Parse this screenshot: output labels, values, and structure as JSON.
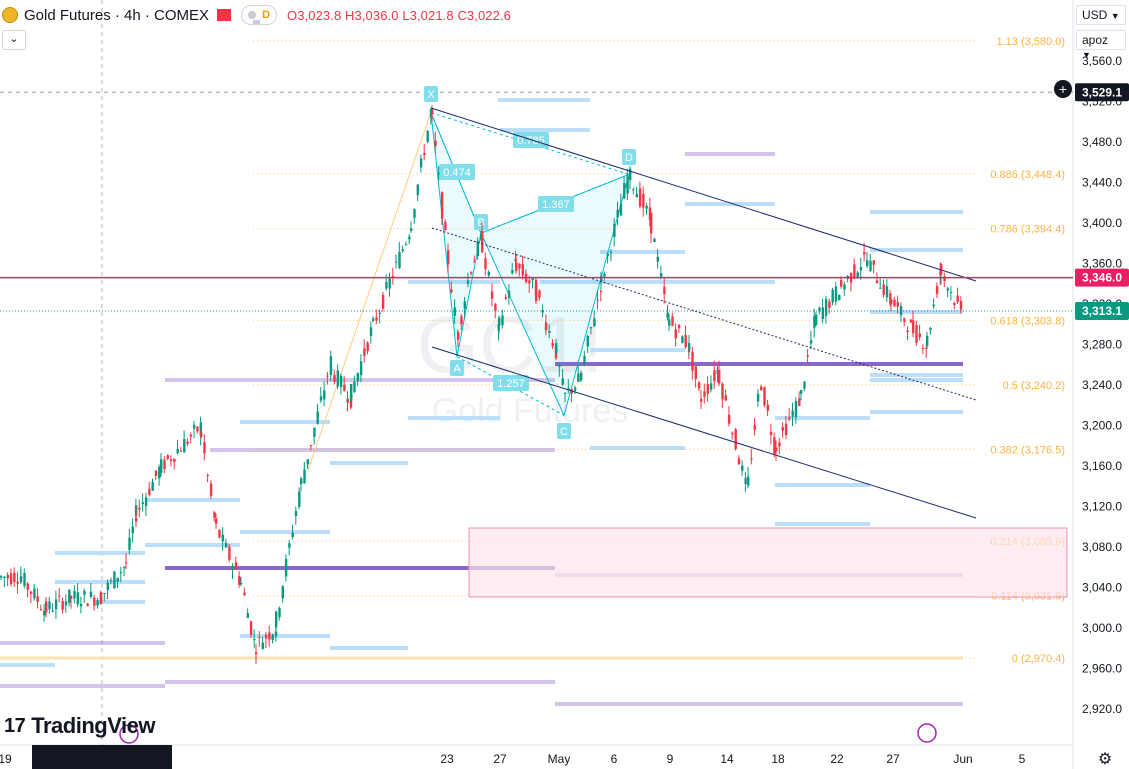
{
  "header": {
    "title": "Gold Futures · 4h · COMEX",
    "pill_label": "D",
    "ohlc": {
      "o": "O3,023.8",
      "h": "H3,036.0",
      "l": "L3,021.8",
      "c": "C3,022.6"
    },
    "collapse_icon": "chevron-down-icon"
  },
  "right_toolbar": {
    "currency": "USD",
    "currency_icon": "chevron-down-icon",
    "scale": "apoz",
    "scale_icon": "chevron-down-icon"
  },
  "crosshair_price": "3,529.1",
  "brand": "TradingView",
  "watermark": {
    "symbol": "GC1!",
    "name": "Gold Futures"
  },
  "colors": {
    "up": "#089981",
    "down": "#f23645",
    "fib": "#ff9800",
    "channel": "#1e2a6e",
    "pattern": "#00bcd4",
    "hline": "#e91e63",
    "box": "#fce4ec",
    "purple": "#7e57c2",
    "bluebar": "#bbdefb"
  },
  "chart_data": {
    "type": "candlestick",
    "symbol": "Gold Futures",
    "timeframe": "4h",
    "ylim": [
      2895,
      3605
    ],
    "y_ticks": [
      2920,
      2960,
      3000,
      3040,
      3080,
      3120,
      3160,
      3200,
      3240,
      3280,
      3320,
      3360,
      3400,
      3440,
      3480,
      3520,
      3560
    ],
    "x_ticks": [
      "19",
      "23",
      "27",
      "May",
      "6",
      "9",
      "14",
      "18",
      "22",
      "27",
      "Jun",
      "5"
    ],
    "fib_levels": [
      {
        "ratio": "1.13",
        "price": 3580.0,
        "label": "1.13 (3,580.0)"
      },
      {
        "ratio": "0.886",
        "price": 3448.4,
        "label": "0.886 (3,448.4)"
      },
      {
        "ratio": "0.786",
        "price": 3394.4,
        "label": "0.786 (3,394.4)"
      },
      {
        "ratio": "0.618",
        "price": 3303.8,
        "label": "0.618 (3,303.8)"
      },
      {
        "ratio": "0.5",
        "price": 3240.2,
        "label": "0.5 (3,240.2)"
      },
      {
        "ratio": "0.382",
        "price": 3176.5,
        "label": "0.382 (3,176.5)"
      },
      {
        "ratio": "0.214",
        "price": 3085.9,
        "label": "0.214 (3,085.9)"
      },
      {
        "ratio": "0.114",
        "price": 3031.9,
        "label": "0.114 (3,031.9)"
      },
      {
        "ratio": "0",
        "price": 2970.4,
        "label": "0 (2,970.4)"
      }
    ],
    "horizontal_line": {
      "price": 3346.0,
      "label": "3,346.0"
    },
    "last_price": {
      "price": 3313.1,
      "label": "3,313.1"
    },
    "pattern_points": [
      {
        "label": "X",
        "price": 3509
      },
      {
        "label": "A",
        "price": 3268
      },
      {
        "label": "B",
        "price": 3390
      },
      {
        "label": "C",
        "price": 3210
      },
      {
        "label": "D",
        "price": 3448
      }
    ],
    "pattern_ratios": [
      "0.474",
      "0.785",
      "1.367",
      "1.257"
    ],
    "candles": []
  }
}
